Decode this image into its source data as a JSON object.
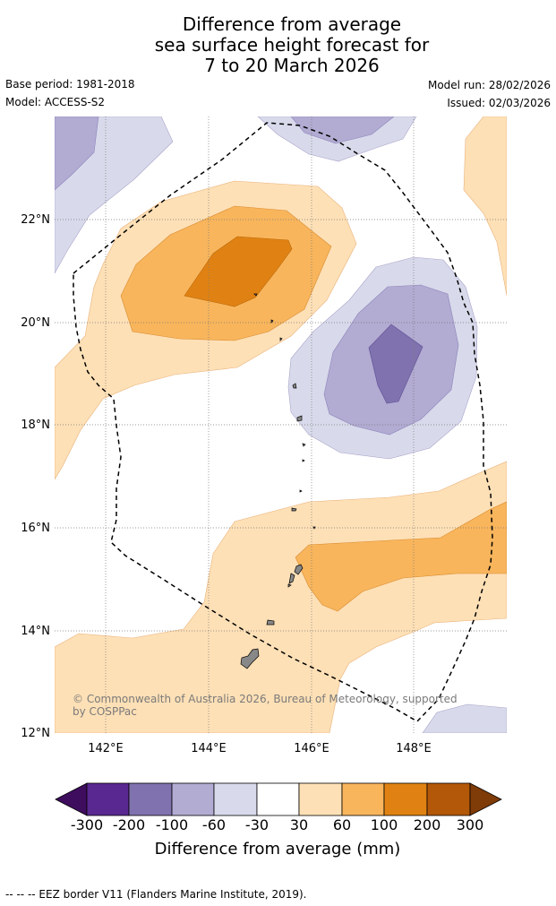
{
  "title": {
    "line1": "Difference from average",
    "line2": "sea surface height forecast for",
    "line3": "7 to 20 March 2026"
  },
  "meta": {
    "base_period": "Base period: 1981-2018",
    "model": "Model: ACCESS-S2",
    "model_run": "Model run: 28/02/2026",
    "issued": "Issued: 02/03/2026"
  },
  "map": {
    "lat_labels": [
      "22°N",
      "20°N",
      "18°N",
      "16°N",
      "14°N",
      "12°N"
    ],
    "lon_labels": [
      "142°E",
      "144°E",
      "146°E",
      "148°E"
    ],
    "copyright": "© Commonwealth of Australia 2026, Bureau of Meteorology, supported by COSPPac",
    "eez_style": "dashed"
  },
  "colorbar": {
    "title": "Difference from average (mm)",
    "labels": [
      "-300",
      "-200",
      "-100",
      "-60",
      "-30",
      "30",
      "60",
      "100",
      "200",
      "300"
    ],
    "colors": [
      "#3f0d5e",
      "#5a2891",
      "#8072ae",
      "#b2abd2",
      "#d8daeb",
      "#ffffff",
      "#fee0b6",
      "#f8b55c",
      "#e08213",
      "#b35808",
      "#7f3b08"
    ]
  },
  "footnote": "--  --  -- EEZ border V11 (Flanders Marine Institute, 2019)."
}
